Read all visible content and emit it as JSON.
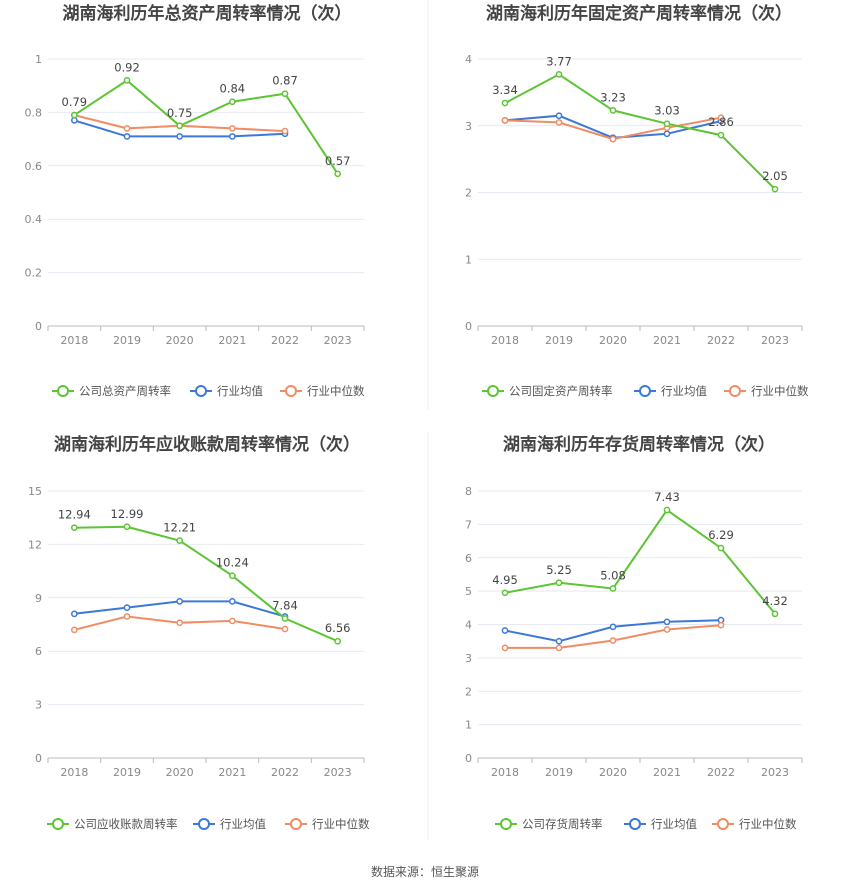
{
  "source": "数据来源：恒生聚源",
  "colors": {
    "company": "#5cc534",
    "avg": "#3c78d8",
    "median": "#f08c64",
    "grid": "#e6e9f0",
    "axis": "#bbbbbb"
  },
  "chart_data": [
    {
      "type": "line",
      "title": "湖南海利历年总资产周转率情况（次）",
      "categories": [
        "2018",
        "2019",
        "2020",
        "2021",
        "2022",
        "2023"
      ],
      "yticks": [
        "0",
        "0.2",
        "0.4",
        "0.6",
        "0.8",
        "1"
      ],
      "ylim": [
        0,
        1
      ],
      "series": [
        {
          "name": "公司总资产周转率",
          "color": "company",
          "values": [
            0.79,
            0.92,
            0.75,
            0.84,
            0.87,
            0.57
          ],
          "labels": [
            "0.79",
            "0.92",
            "0.75",
            "0.84",
            "0.87",
            "0.57"
          ]
        },
        {
          "name": "行业均值",
          "color": "avg",
          "values": [
            0.77,
            0.71,
            0.71,
            0.71,
            0.72,
            null
          ]
        },
        {
          "name": "行业中位数",
          "color": "median",
          "values": [
            0.79,
            0.74,
            0.75,
            0.74,
            0.73,
            null
          ]
        }
      ]
    },
    {
      "type": "line",
      "title": "湖南海利历年固定资产周转率情况（次）",
      "categories": [
        "2018",
        "2019",
        "2020",
        "2021",
        "2022",
        "2023"
      ],
      "yticks": [
        "0",
        "1",
        "2",
        "3",
        "4"
      ],
      "ylim": [
        0,
        4
      ],
      "series": [
        {
          "name": "公司固定资产周转率",
          "color": "company",
          "values": [
            3.34,
            3.77,
            3.23,
            3.03,
            2.86,
            2.05
          ],
          "labels": [
            "3.34",
            "3.77",
            "3.23",
            "3.03",
            "2.86",
            "2.05"
          ]
        },
        {
          "name": "行业均值",
          "color": "avg",
          "values": [
            3.08,
            3.15,
            2.82,
            2.88,
            3.07,
            null
          ]
        },
        {
          "name": "行业中位数",
          "color": "median",
          "values": [
            3.08,
            3.05,
            2.8,
            2.97,
            3.12,
            null
          ]
        }
      ]
    },
    {
      "type": "line",
      "title": "湖南海利历年应收账款周转率情况（次）",
      "categories": [
        "2018",
        "2019",
        "2020",
        "2021",
        "2022",
        "2023"
      ],
      "yticks": [
        "0",
        "3",
        "6",
        "9",
        "12",
        "15"
      ],
      "ylim": [
        0,
        15
      ],
      "series": [
        {
          "name": "公司应收账款周转率",
          "color": "company",
          "values": [
            12.94,
            12.99,
            12.21,
            10.24,
            7.84,
            6.56
          ],
          "labels": [
            "12.94",
            "12.99",
            "12.21",
            "10.24",
            "7.84",
            "6.56"
          ]
        },
        {
          "name": "行业均值",
          "color": "avg",
          "values": [
            8.1,
            8.45,
            8.8,
            8.8,
            7.95,
            null
          ]
        },
        {
          "name": "行业中位数",
          "color": "median",
          "values": [
            7.2,
            7.95,
            7.6,
            7.7,
            7.25,
            null
          ]
        }
      ]
    },
    {
      "type": "line",
      "title": "湖南海利历年存货周转率情况（次）",
      "categories": [
        "2018",
        "2019",
        "2020",
        "2021",
        "2022",
        "2023"
      ],
      "yticks": [
        "0",
        "1",
        "2",
        "3",
        "4",
        "5",
        "6",
        "7",
        "8"
      ],
      "ylim": [
        0,
        8
      ],
      "series": [
        {
          "name": "公司存货周转率",
          "color": "company",
          "values": [
            4.95,
            5.25,
            5.08,
            7.43,
            6.29,
            4.32
          ],
          "labels": [
            "4.95",
            "5.25",
            "5.08",
            "7.43",
            "6.29",
            "4.32"
          ]
        },
        {
          "name": "行业均值",
          "color": "avg",
          "values": [
            3.82,
            3.5,
            3.93,
            4.08,
            4.13,
            null
          ]
        },
        {
          "name": "行业中位数",
          "color": "median",
          "values": [
            3.3,
            3.3,
            3.52,
            3.85,
            3.98,
            null
          ]
        }
      ]
    }
  ]
}
